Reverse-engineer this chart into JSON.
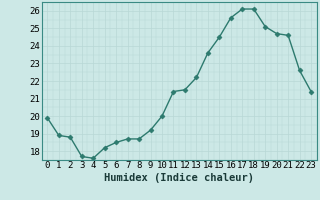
{
  "x": [
    0,
    1,
    2,
    3,
    4,
    5,
    6,
    7,
    8,
    9,
    10,
    11,
    12,
    13,
    14,
    15,
    16,
    17,
    18,
    19,
    20,
    21,
    22,
    23
  ],
  "y": [
    19.9,
    18.9,
    18.8,
    17.7,
    17.6,
    18.2,
    18.5,
    18.7,
    18.7,
    19.2,
    20.0,
    21.4,
    21.5,
    22.2,
    23.6,
    24.5,
    25.6,
    26.1,
    26.1,
    25.1,
    24.7,
    24.6,
    22.6,
    21.4
  ],
  "line_color": "#2d7a6e",
  "marker": "D",
  "marker_size": 2.5,
  "bg_color": "#cce8e6",
  "grid_minor_color": "#b8d8d6",
  "grid_major_color": "#a0cac8",
  "xlabel": "Humidex (Indice chaleur)",
  "xlim": [
    -0.5,
    23.5
  ],
  "ylim": [
    17.5,
    26.5
  ],
  "yticks": [
    18,
    19,
    20,
    21,
    22,
    23,
    24,
    25,
    26
  ],
  "xticks": [
    0,
    1,
    2,
    3,
    4,
    5,
    6,
    7,
    8,
    9,
    10,
    11,
    12,
    13,
    14,
    15,
    16,
    17,
    18,
    19,
    20,
    21,
    22,
    23
  ],
  "xlabel_fontsize": 7.5,
  "tick_fontsize": 6.5
}
